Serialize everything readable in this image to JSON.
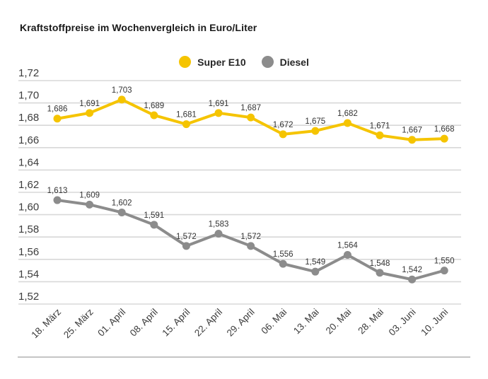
{
  "page": {
    "title": "Kraftstoffpreise im Wochenvergleich in Euro/Liter"
  },
  "legend": {
    "items": [
      {
        "label": "Super E10",
        "color": "#F5C400"
      },
      {
        "label": "Diesel",
        "color": "#8C8C8C"
      }
    ]
  },
  "colors": {
    "super_e10": "#F5C400",
    "diesel": "#8C8C8C",
    "gridline": "#D8D8D8",
    "tick_text": "#3C3C3C",
    "value_text": "#333333",
    "separator": "#C5C5C5"
  },
  "chart_data": {
    "type": "line",
    "title": "Kraftstoffpreise im Wochenvergleich in Euro/Liter",
    "categories": [
      "18. März",
      "25. März",
      "01. April",
      "08. April",
      "15. April",
      "22. April",
      "29. April",
      "06. Mai",
      "13. Mai",
      "20. Mai",
      "28. Mai",
      "03. Juni",
      "10. Juni"
    ],
    "series": [
      {
        "name": "Super E10",
        "color": "#F5C400",
        "values": [
          1.686,
          1.691,
          1.703,
          1.689,
          1.681,
          1.691,
          1.687,
          1.672,
          1.675,
          1.682,
          1.671,
          1.667,
          1.668
        ]
      },
      {
        "name": "Diesel",
        "color": "#8C8C8C",
        "values": [
          1.613,
          1.609,
          1.602,
          1.591,
          1.572,
          1.583,
          1.572,
          1.556,
          1.549,
          1.564,
          1.548,
          1.542,
          1.55
        ]
      }
    ],
    "xlabel": "",
    "ylabel": "",
    "ylim": [
      1.52,
      1.72
    ],
    "y_ticks": [
      "1,72",
      "1,70",
      "1,68",
      "1,66",
      "1,64",
      "1,62",
      "1,60",
      "1,58",
      "1,56",
      "1,54",
      "1,52"
    ],
    "grid": true,
    "legend_position": "top",
    "value_labels": true,
    "decimal_separator": ","
  }
}
